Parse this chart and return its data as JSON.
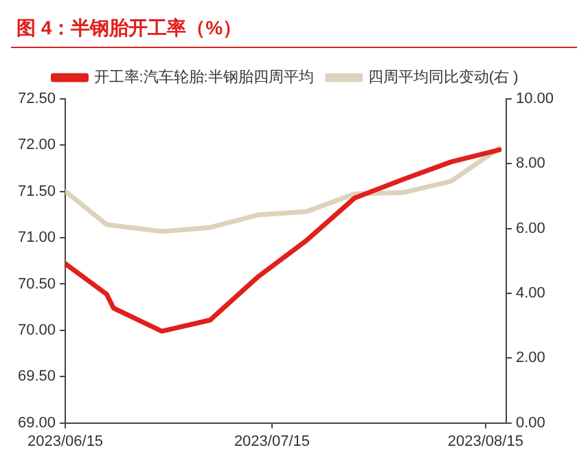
{
  "chart_data": {
    "type": "line",
    "title": "图 4：半钢胎开工率（%）",
    "legend": "top",
    "grid": false,
    "series": [
      {
        "name": "开工率:汽车轮胎:半钢胎四周平均",
        "color": "#e0201c",
        "x": [
          "2023-06-15",
          "2023-06-21",
          "2023-06-22",
          "2023-06-29",
          "2023-07-06",
          "2023-07-13",
          "2023-07-20",
          "2023-07-27",
          "2023-08-03",
          "2023-08-10",
          "2023-08-17"
        ],
        "values": [
          70.72,
          70.39,
          70.24,
          69.99,
          70.11,
          70.58,
          70.97,
          71.43,
          71.63,
          71.82,
          71.95
        ]
      },
      {
        "name": "四周平均同比变动(右 )",
        "color": "#ddd3bd",
        "axis": "y2",
        "x": [
          "2023-06-15",
          "2023-06-21",
          "2023-06-29",
          "2023-07-06",
          "2023-07-13",
          "2023-07-20",
          "2023-07-27",
          "2023-08-03",
          "2023-08-10",
          "2023-08-17"
        ],
        "values": [
          7.15,
          6.12,
          5.91,
          6.03,
          6.42,
          6.52,
          7.07,
          7.11,
          7.46,
          8.48
        ]
      }
    ],
    "xlim": [
      "2023-06-15",
      "2023-08-18"
    ],
    "xticks": [
      {
        "value": "2023-06-15",
        "label": "2023/06/15"
      },
      {
        "value": "2023-07-15",
        "label": "2023/07/15"
      },
      {
        "value": "2023-08-15",
        "label": "2023/08/15"
      }
    ],
    "ylim": [
      69,
      72.5
    ],
    "yticks": [
      {
        "value": 69,
        "label": "69.00"
      },
      {
        "value": 69.5,
        "label": "69.50"
      },
      {
        "value": 70,
        "label": "70.00"
      },
      {
        "value": 70.5,
        "label": "70.50"
      },
      {
        "value": 71,
        "label": "71.00"
      },
      {
        "value": 71.5,
        "label": "71.50"
      },
      {
        "value": 72,
        "label": "72.00"
      },
      {
        "value": 72.5,
        "label": "72.50"
      }
    ],
    "y2lim": [
      0,
      10
    ],
    "y2ticks": [
      {
        "value": 0,
        "label": "0.00"
      },
      {
        "value": 2,
        "label": "2.00"
      },
      {
        "value": 4,
        "label": "4.00"
      },
      {
        "value": 6,
        "label": "6.00"
      },
      {
        "value": 8,
        "label": "8.00"
      },
      {
        "value": 10,
        "label": "10.00"
      }
    ]
  }
}
